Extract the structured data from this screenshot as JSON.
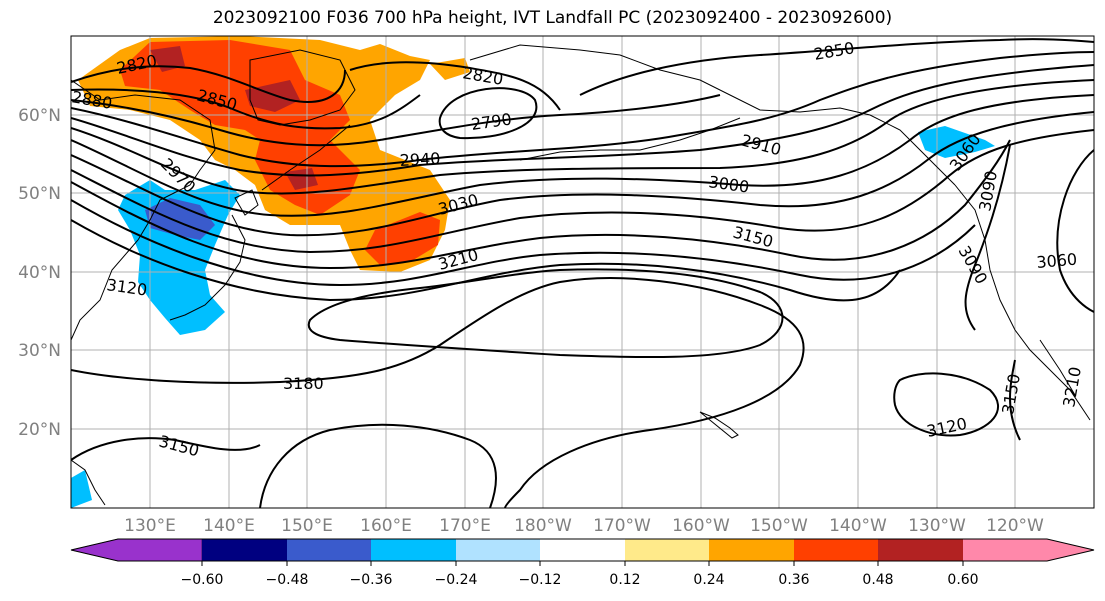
{
  "title": "2023092100 F036 700 hPa height, IVT Landfall PC (2023092400 - 2023092600)",
  "map": {
    "projection": "equirectangular",
    "lon_range_east": [
      120,
      250
    ],
    "lat_range": [
      10,
      70
    ],
    "lat_labels": [
      "20°N",
      "30°N",
      "40°N",
      "50°N",
      "60°N"
    ],
    "lon_labels": [
      "130°E",
      "140°E",
      "150°E",
      "160°E",
      "170°E",
      "180°W",
      "170°W",
      "160°W",
      "150°W",
      "140°W",
      "130°W",
      "120°W"
    ],
    "gridlines": true,
    "contour_levels_shown": [
      "2790",
      "2820",
      "2820",
      "2850",
      "2850",
      "2880",
      "2910",
      "2940",
      "2970",
      "3000",
      "3030",
      "3060",
      "3060",
      "3090",
      "3090",
      "3120",
      "3120",
      "3150",
      "3150",
      "3150",
      "3180",
      "3210",
      "3210"
    ]
  },
  "colorbar": {
    "ticks": [
      "−0.60",
      "−0.48",
      "−0.36",
      "−0.24",
      "−0.12",
      "0.12",
      "0.24",
      "0.36",
      "0.48",
      "0.60"
    ],
    "colors": [
      "#9932cc",
      "#000080",
      "#3a5bcc",
      "#00bfff",
      "#b0e2ff",
      "#ffffff",
      "#ffea8a",
      "#ffa500",
      "#ff4000",
      "#b22222",
      "#ff88aa"
    ]
  },
  "colors": {
    "pos_orange": "#ffa500",
    "pos_red": "#ff4000",
    "pos_darkred": "#b22222",
    "neg_cyan": "#00bfff",
    "neg_blue": "#3a5bcc",
    "neg_lightblue": "#b0e2ff"
  }
}
